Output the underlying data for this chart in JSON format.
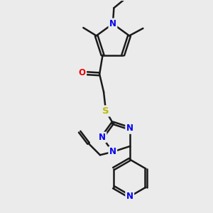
{
  "bg_color": "#ebebeb",
  "bond_color": "#1a1a1a",
  "bond_width": 1.8,
  "atom_colors": {
    "N": "#0000EE",
    "O": "#EE0000",
    "S": "#BBBB00",
    "C": "#1a1a1a"
  },
  "font_size": 8.5,
  "fig_size": [
    3.0,
    3.0
  ],
  "dpi": 100
}
